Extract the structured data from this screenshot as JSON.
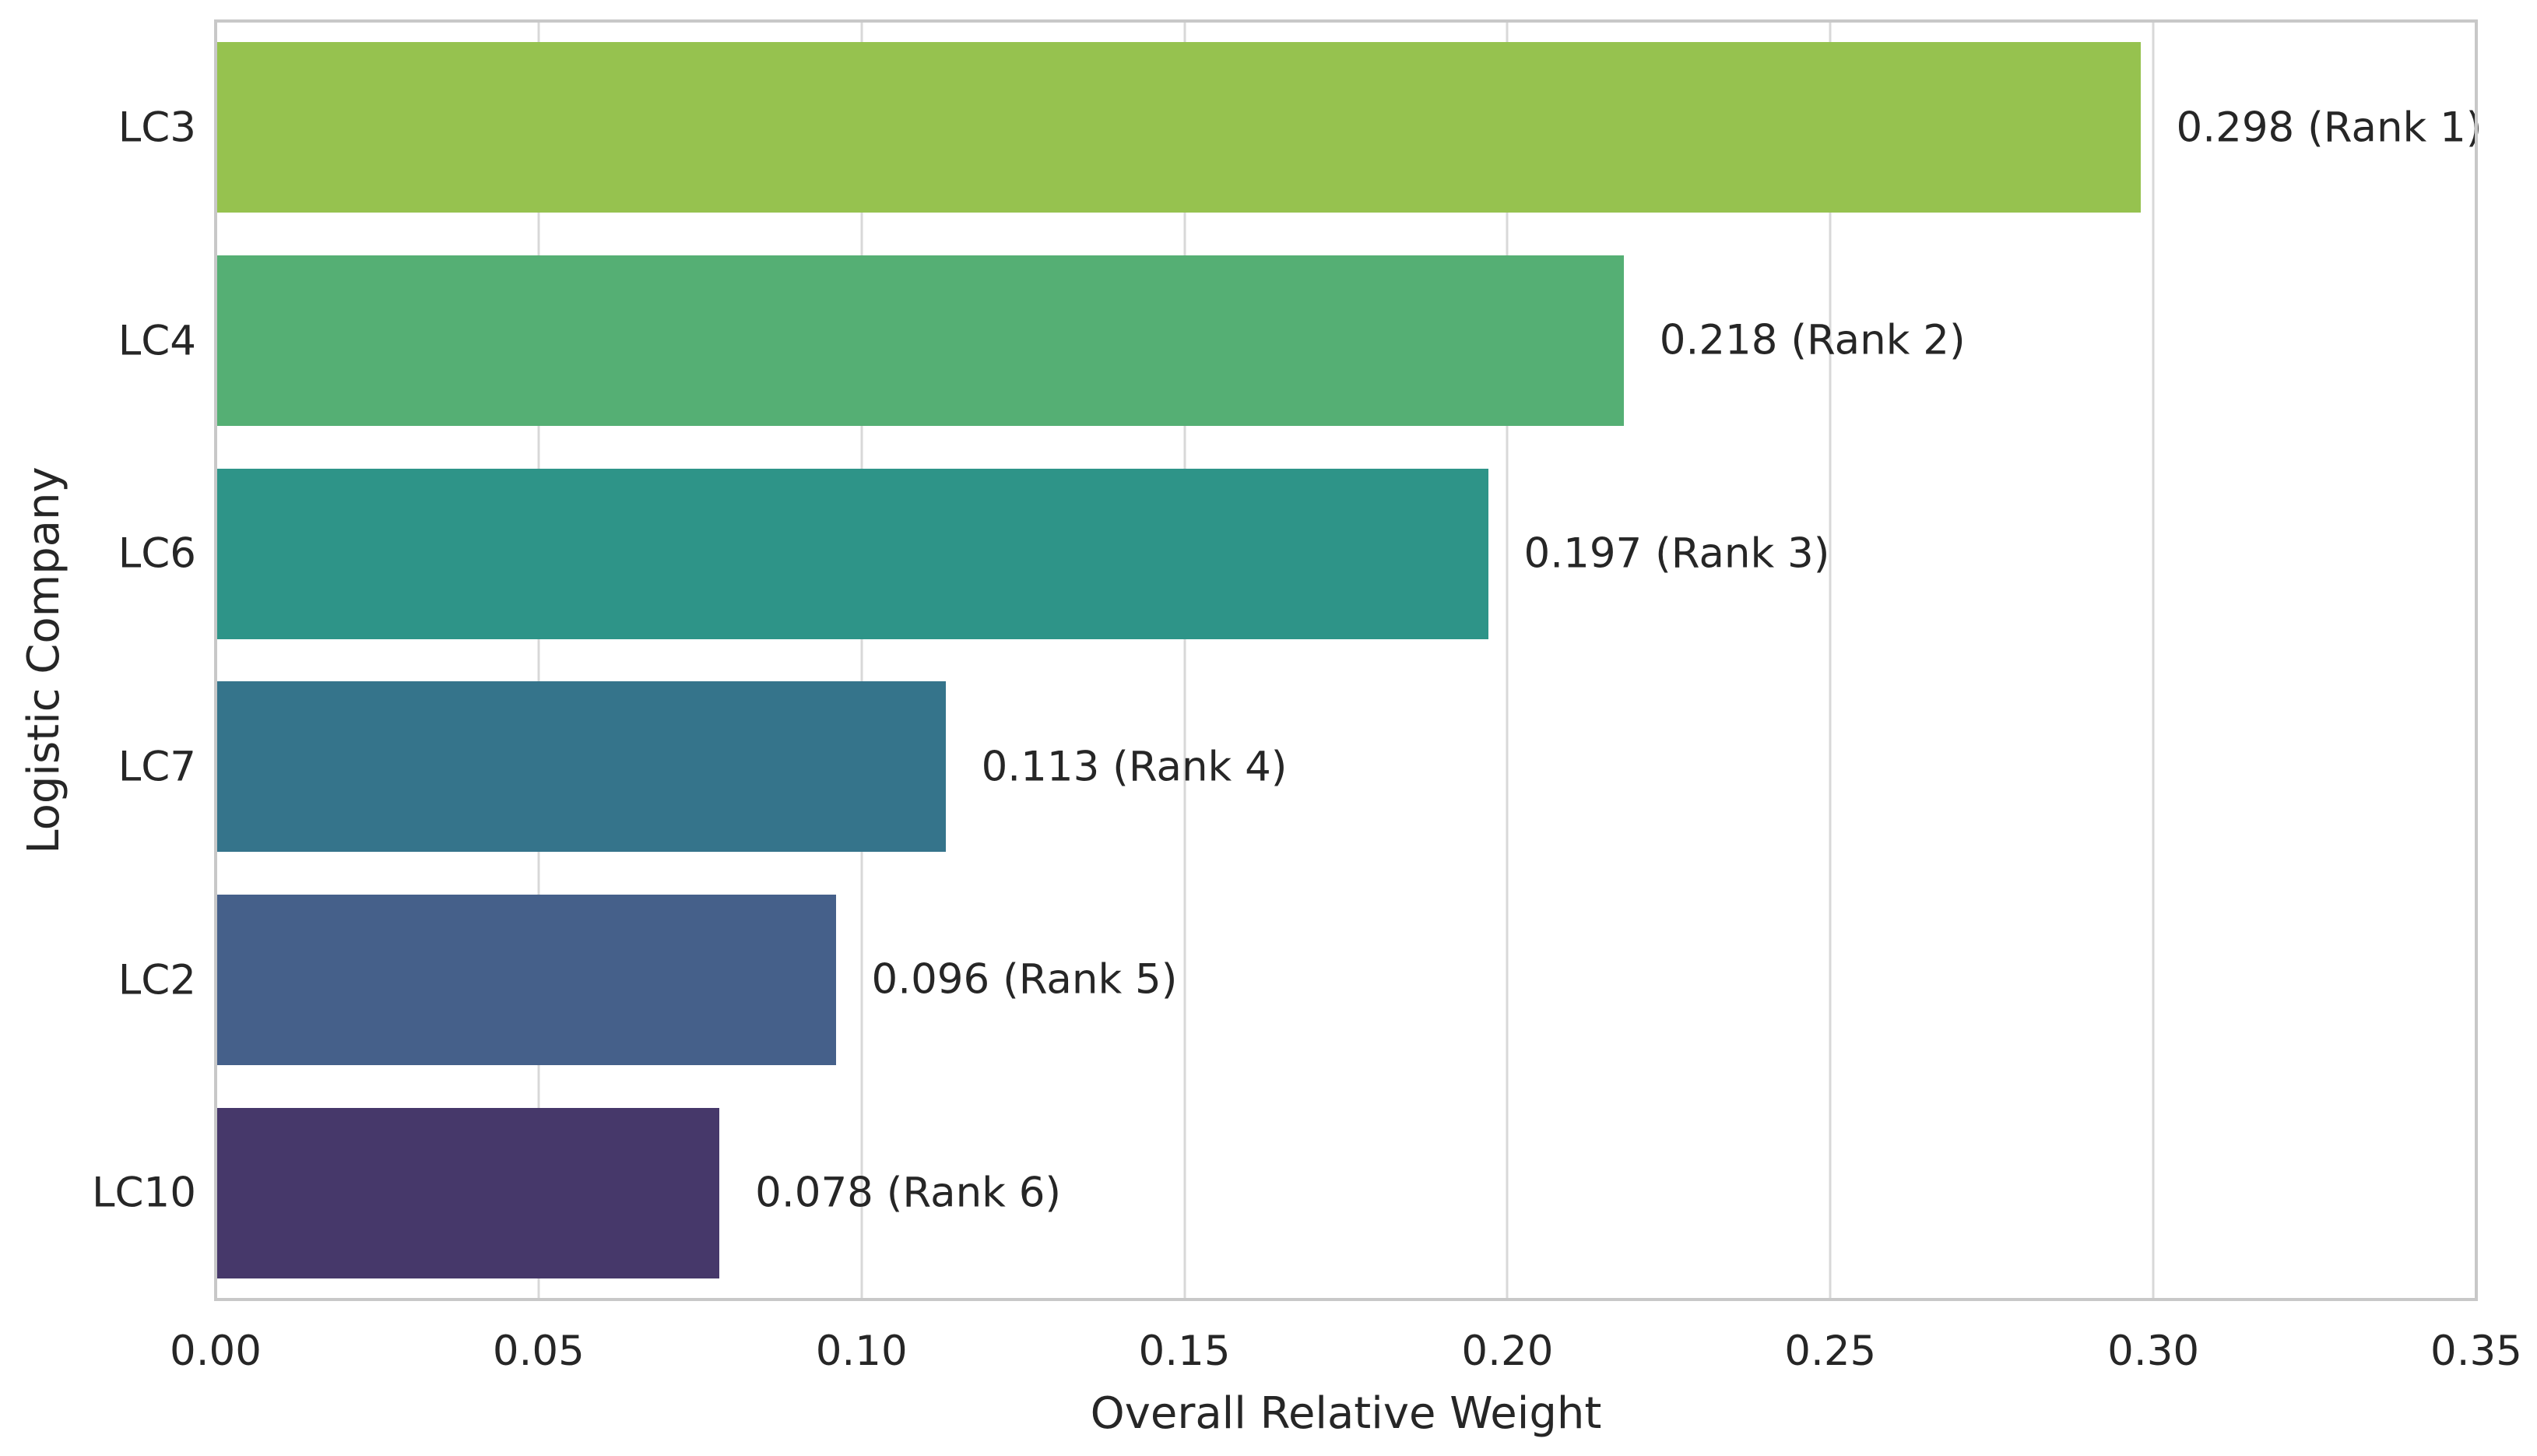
{
  "chart_data": {
    "type": "bar",
    "orientation": "horizontal",
    "title": "",
    "xlabel": "Overall Relative Weight",
    "ylabel": "Logistic Company",
    "categories": [
      "LC3",
      "LC4",
      "LC6",
      "LC7",
      "LC2",
      "LC10"
    ],
    "values": [
      0.298,
      0.218,
      0.197,
      0.113,
      0.096,
      0.078
    ],
    "ranks": [
      1,
      2,
      3,
      4,
      5,
      6
    ],
    "bar_labels": [
      "0.298 (Rank 1)",
      "0.218 (Rank 2)",
      "0.197 (Rank 3)",
      "0.113 (Rank 4)",
      "0.096 (Rank 5)",
      "0.078 (Rank 6)"
    ],
    "xlim": [
      0,
      0.35
    ],
    "xtick_labels": [
      "0.00",
      "0.05",
      "0.10",
      "0.15",
      "0.20",
      "0.25",
      "0.30",
      "0.35"
    ],
    "grid": true,
    "legend": false,
    "bar_colors": [
      "#96c24f",
      "#55af74",
      "#2e9488",
      "#35748b",
      "#45608a",
      "#46386a"
    ],
    "grid_color": "#d8d8d8",
    "spine_color": "#c8c8c8",
    "text_color": "#262626",
    "background_color": "#ffffff"
  }
}
